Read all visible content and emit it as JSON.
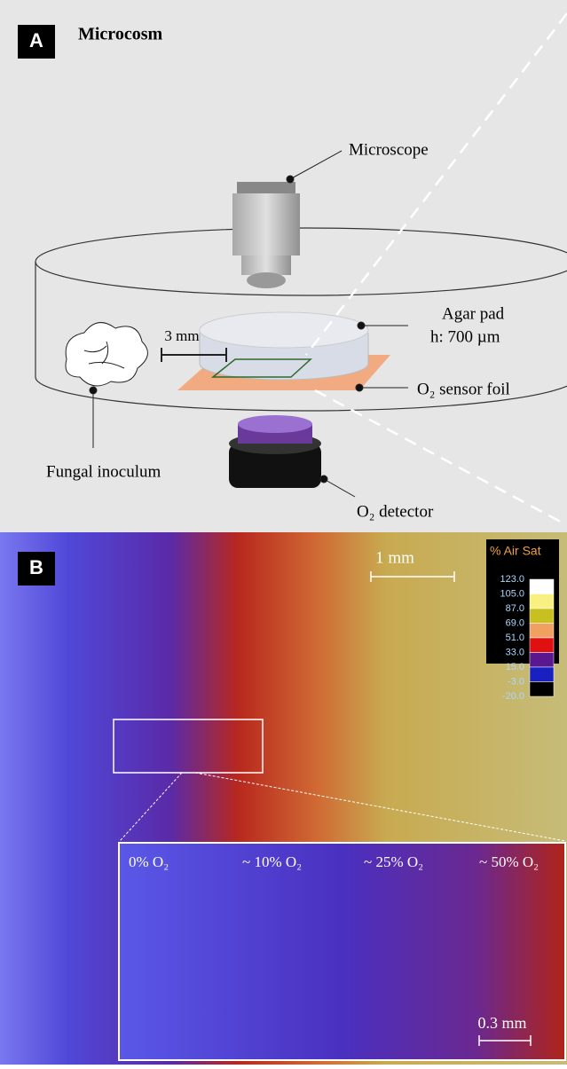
{
  "panel_a": {
    "label": "A",
    "title": "Microcosm",
    "microscope": "Microscope",
    "agar_pad": "Agar pad",
    "agar_height": "h: 700 µm",
    "distance": "3 mm",
    "sensor_foil": "O₂ sensor foil",
    "inoculum": "Fungal inoculum",
    "detector": "O₂ detector"
  },
  "panel_b": {
    "label": "B",
    "scale_bar": "1 mm",
    "colorbar": {
      "title": "% Air Sat",
      "labels": [
        "123.0",
        "105.0",
        "87.0",
        "69.0",
        "51.0",
        "33.0",
        "15.0",
        "-3.0",
        "-20.0"
      ]
    },
    "inset": {
      "labels": [
        "0% O₂",
        "~ 10% O₂",
        "~ 25% O₂",
        "~ 50% O₂"
      ],
      "scale_bar": "0.3 mm"
    }
  }
}
